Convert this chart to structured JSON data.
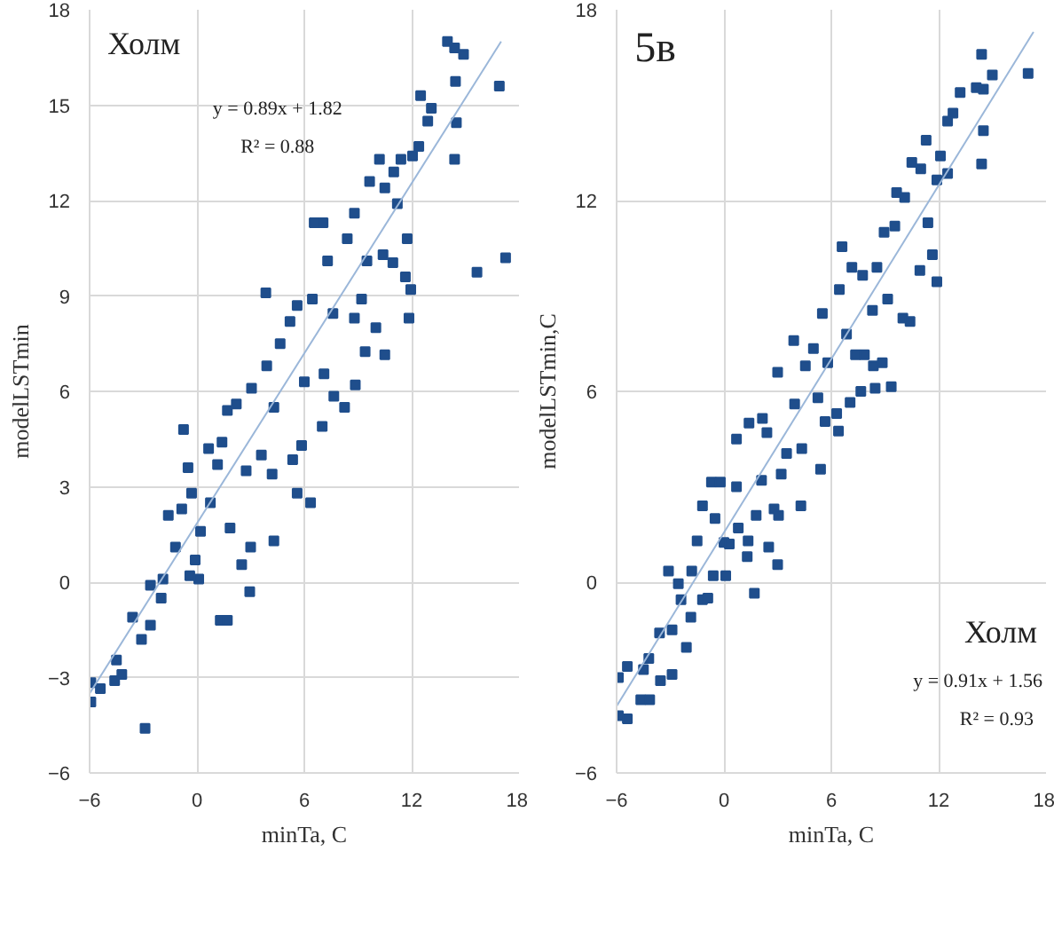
{
  "chart_data": [
    {
      "type": "scatter",
      "xlabel": "minTa, C",
      "ylabel": "modelLSTmin",
      "annotations": [
        "Холм",
        "y = 0.89x + 1.82",
        "R² = 0.88"
      ],
      "xlim": [
        -6,
        18
      ],
      "xticks": [
        -6,
        0,
        6,
        12,
        18
      ],
      "ylim": [
        -6,
        18
      ],
      "yticks": [
        -6,
        -3,
        0,
        3,
        6,
        9,
        12,
        15,
        18
      ],
      "grid": true,
      "series": [
        {
          "marker": "square",
          "color": "#1f4e8c",
          "x": [
            -5.93,
            -5.93,
            -5.4,
            -4.6,
            -4.5,
            -4.2,
            -2.9,
            -3.6,
            -3.1,
            -2.6,
            -2.6,
            -2.0,
            -1.9,
            -1.6,
            -1.2,
            -0.85,
            -0.75,
            -0.5,
            -0.4,
            -0.1,
            0.1,
            -0.3,
            0.2,
            0.65,
            0.75,
            1.3,
            1.7,
            1.15,
            1.4,
            1.7,
            1.85,
            2.2,
            2.5,
            2.95,
            3.0,
            2.75,
            3.05,
            3.6,
            3.85,
            4.3,
            4.2,
            4.3,
            3.9,
            4.65,
            5.2,
            5.35,
            5.6,
            5.6,
            5.85,
            6.0,
            6.35,
            6.45,
            6.55,
            7.05,
            7.0,
            7.1,
            7.3,
            7.6,
            7.65,
            8.25,
            8.4,
            8.8,
            8.85,
            8.8,
            9.2,
            9.4,
            9.5,
            9.65,
            10.0,
            10.2,
            10.5,
            10.4,
            10.5,
            10.95,
            11.0,
            11.2,
            11.4,
            11.65,
            11.75,
            11.85,
            11.95,
            12.05,
            12.4,
            12.5,
            12.9,
            13.1,
            14.0,
            14.4,
            14.9,
            14.45,
            14.4,
            14.5,
            15.65,
            16.9,
            17.25
          ],
          "values": [
            -3.77,
            -3.16,
            -3.35,
            -3.1,
            -2.45,
            -2.9,
            -4.6,
            -1.1,
            -1.8,
            -1.35,
            -0.1,
            -0.5,
            0.1,
            2.1,
            1.1,
            2.3,
            4.8,
            3.6,
            0.2,
            0.7,
            0.1,
            2.8,
            1.6,
            4.2,
            2.5,
            -1.2,
            -1.2,
            3.7,
            4.4,
            5.4,
            1.7,
            5.6,
            0.55,
            -0.3,
            1.1,
            3.5,
            6.1,
            4.0,
            9.1,
            1.3,
            3.4,
            5.5,
            6.8,
            7.5,
            8.2,
            3.85,
            2.8,
            8.7,
            4.3,
            6.3,
            2.5,
            8.9,
            11.3,
            11.3,
            4.9,
            6.55,
            10.1,
            8.45,
            5.85,
            5.5,
            10.8,
            8.3,
            6.2,
            11.6,
            8.9,
            7.25,
            10.1,
            12.6,
            8.0,
            13.3,
            7.15,
            10.3,
            12.4,
            10.05,
            12.9,
            11.9,
            13.3,
            9.6,
            10.8,
            8.3,
            9.2,
            13.4,
            13.7,
            15.3,
            14.5,
            14.9,
            17.0,
            16.8,
            16.6,
            15.75,
            13.3,
            14.45,
            9.75,
            15.6,
            10.2
          ]
        },
        {
          "type": "line",
          "color": "#9bb7d9",
          "x": [
            -6,
            17
          ],
          "values": [
            -3.5,
            17.0
          ]
        }
      ]
    },
    {
      "type": "scatter",
      "xlabel": "minTa, C",
      "ylabel": "modelLSTmin,C",
      "annotations": [
        "5в",
        "Холм",
        "y = 0.91x + 1.56",
        "R² = 0.93"
      ],
      "xlim": [
        -6,
        18
      ],
      "xticks": [
        -6,
        0,
        6,
        12,
        18
      ],
      "ylim": [
        -6,
        18
      ],
      "yticks": [
        -6,
        0,
        6,
        12,
        18
      ],
      "grid": true,
      "series": [
        {
          "marker": "square",
          "color": "#1f4e8c",
          "x": [
            -5.9,
            -5.9,
            -5.4,
            -5.4,
            -4.65,
            -4.5,
            -4.15,
            -4.2,
            -3.55,
            -3.6,
            -3.1,
            -2.9,
            -2.9,
            -2.55,
            -2.4,
            -2.1,
            -1.85,
            -1.8,
            -1.5,
            -1.2,
            -1.2,
            -0.9,
            -0.7,
            -0.6,
            -0.5,
            -0.2,
            0.1,
            0.0,
            0.3,
            0.7,
            0.7,
            0.8,
            1.3,
            1.4,
            1.35,
            1.7,
            1.8,
            2.1,
            2.15,
            2.4,
            2.5,
            2.8,
            3.0,
            3.05,
            3.0,
            3.2,
            3.5,
            3.9,
            3.95,
            4.3,
            4.35,
            4.55,
            5.0,
            5.25,
            5.4,
            5.5,
            5.65,
            5.8,
            6.3,
            6.4,
            6.45,
            6.6,
            6.85,
            7.05,
            7.15,
            7.35,
            7.65,
            7.85,
            7.75,
            8.3,
            8.35,
            8.45,
            8.55,
            8.85,
            8.95,
            9.15,
            9.35,
            9.55,
            9.65,
            10.0,
            10.1,
            10.4,
            10.5,
            10.95,
            11.0,
            11.3,
            11.4,
            11.65,
            11.9,
            11.9,
            12.1,
            12.5,
            12.5,
            12.8,
            13.2,
            14.1,
            14.4,
            14.5,
            14.5,
            14.4,
            15.0,
            17.0
          ],
          "values": [
            -4.2,
            -3.0,
            -4.3,
            -2.65,
            -3.7,
            -2.75,
            -3.7,
            -2.4,
            -3.1,
            -1.6,
            0.35,
            -1.5,
            -2.9,
            -0.05,
            -0.55,
            -2.05,
            -1.1,
            0.35,
            1.3,
            2.4,
            -0.55,
            -0.5,
            3.15,
            0.2,
            2.0,
            3.15,
            0.2,
            1.25,
            1.2,
            3.0,
            4.5,
            1.7,
            0.8,
            5.0,
            1.3,
            -0.35,
            2.1,
            3.2,
            5.15,
            4.7,
            1.1,
            2.3,
            0.55,
            2.1,
            6.6,
            3.4,
            4.05,
            7.6,
            5.6,
            2.4,
            4.2,
            6.8,
            7.35,
            5.8,
            3.55,
            8.45,
            5.05,
            6.9,
            5.3,
            4.75,
            9.2,
            10.55,
            7.8,
            5.65,
            9.9,
            7.15,
            6.0,
            7.15,
            9.65,
            8.55,
            6.8,
            6.1,
            9.9,
            6.9,
            11.0,
            8.9,
            6.15,
            11.2,
            12.25,
            8.3,
            12.1,
            8.2,
            13.2,
            9.8,
            13.0,
            13.9,
            11.3,
            10.3,
            9.45,
            12.65,
            13.4,
            12.85,
            14.5,
            14.75,
            15.4,
            15.55,
            13.15,
            14.2,
            15.5,
            16.6,
            15.95,
            16.0
          ]
        },
        {
          "type": "line",
          "color": "#9bb7d9",
          "x": [
            -6,
            17.3
          ],
          "values": [
            -3.9,
            17.3
          ]
        }
      ]
    }
  ]
}
